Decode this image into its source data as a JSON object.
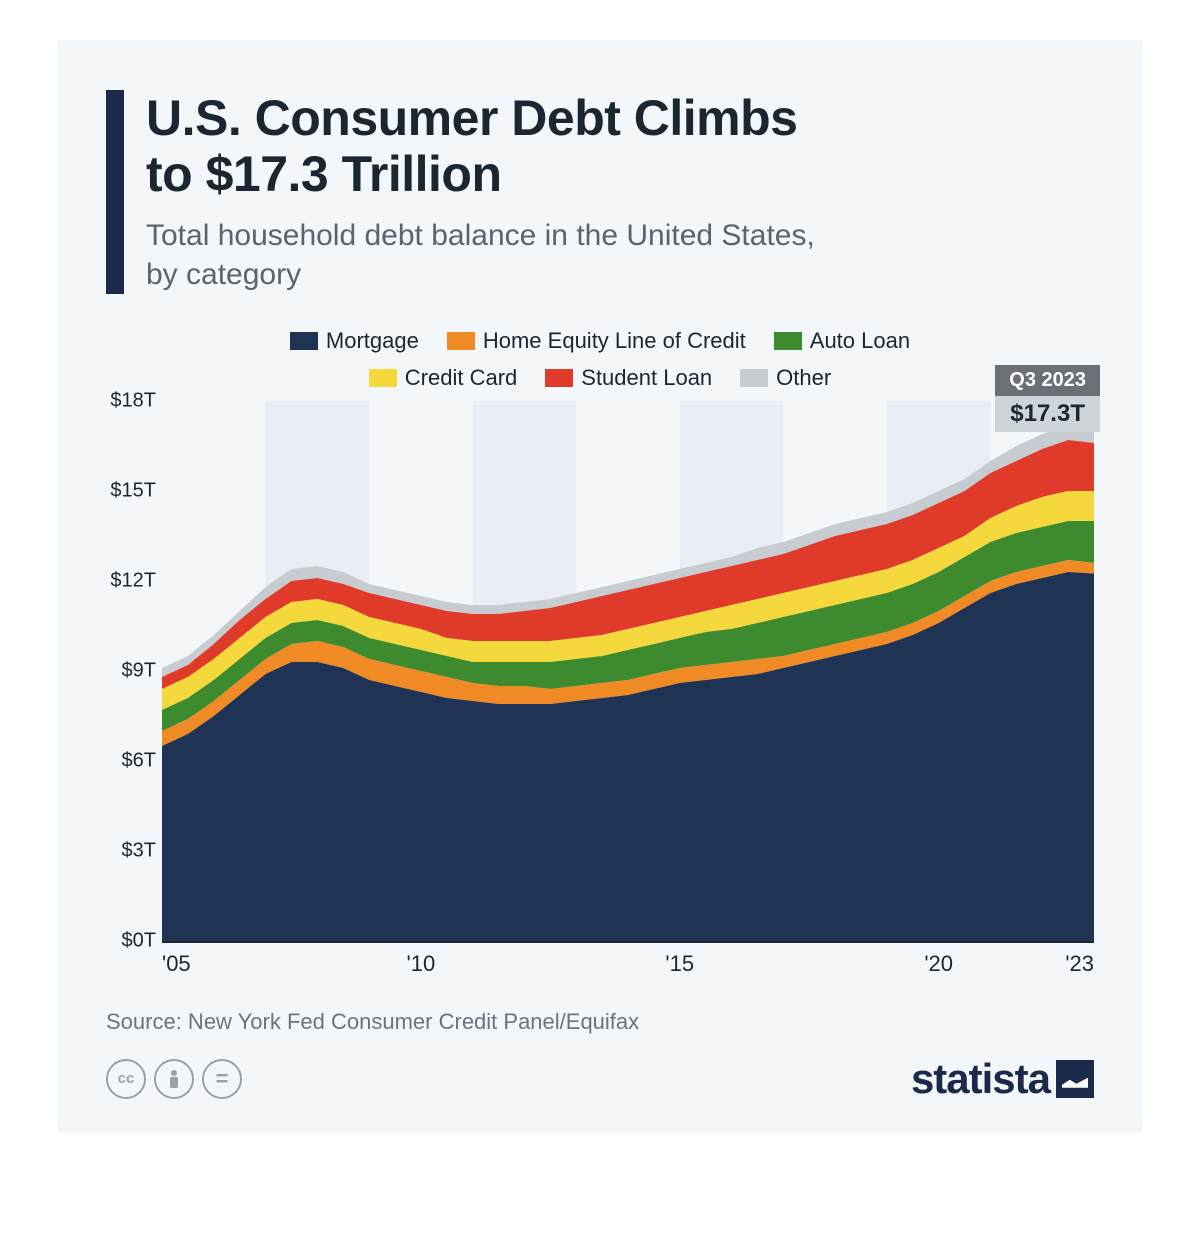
{
  "header": {
    "title_line1": "U.S. Consumer Debt Climbs",
    "title_line2": "to $17.3 Trillion",
    "subtitle_line1": "Total household debt balance in the United States,",
    "subtitle_line2": "by category"
  },
  "chart": {
    "type": "stacked-area",
    "background_color": "#f4f7fa",
    "plot_stripe_a": "#f4f7fa",
    "plot_stripe_b": "#e9eef4",
    "ylim": [
      0,
      18
    ],
    "ytick_step": 3,
    "ytick_labels": [
      "$0T",
      "$3T",
      "$6T",
      "$9T",
      "$12T",
      "$15T",
      "$18T"
    ],
    "x_start_year": 2005,
    "x_end_year": 2023,
    "x_tick_years": [
      2005,
      2010,
      2015,
      2020,
      2023
    ],
    "x_tick_labels": [
      "'05",
      "'10",
      "'15",
      "'20",
      "'23"
    ],
    "series": [
      {
        "name": "Mortgage",
        "color": "#1f3354"
      },
      {
        "name": "Home Equity Line of Credit",
        "color": "#f08a24"
      },
      {
        "name": "Auto Loan",
        "color": "#3e8a2e"
      },
      {
        "name": "Credit Card",
        "color": "#f5d93c"
      },
      {
        "name": "Student Loan",
        "color": "#e03a2a"
      },
      {
        "name": "Other",
        "color": "#c7ccd1"
      }
    ],
    "years_step_quarters": 4,
    "cumulative_layers": [
      [
        6.5,
        6.9,
        7.5,
        8.2,
        8.9,
        9.3,
        9.3,
        9.1,
        8.7,
        8.5,
        8.3,
        8.1,
        8.0,
        7.9,
        7.9,
        7.9,
        8.0,
        8.1,
        8.2,
        8.4,
        8.6,
        8.7,
        8.8,
        8.9,
        9.1,
        9.3,
        9.5,
        9.7,
        9.9,
        10.2,
        10.6,
        11.1,
        11.6,
        11.9,
        12.1,
        12.3,
        12.25
      ],
      [
        7.0,
        7.4,
        8.0,
        8.7,
        9.4,
        9.9,
        10.0,
        9.8,
        9.4,
        9.2,
        9.0,
        8.8,
        8.6,
        8.5,
        8.5,
        8.4,
        8.5,
        8.6,
        8.7,
        8.9,
        9.1,
        9.2,
        9.3,
        9.4,
        9.5,
        9.7,
        9.9,
        10.1,
        10.3,
        10.6,
        11.0,
        11.5,
        12.0,
        12.3,
        12.5,
        12.7,
        12.6
      ],
      [
        7.7,
        8.1,
        8.7,
        9.4,
        10.1,
        10.6,
        10.7,
        10.5,
        10.1,
        9.9,
        9.7,
        9.5,
        9.3,
        9.3,
        9.3,
        9.3,
        9.4,
        9.5,
        9.7,
        9.9,
        10.1,
        10.3,
        10.4,
        10.6,
        10.8,
        11.0,
        11.2,
        11.4,
        11.6,
        11.9,
        12.3,
        12.8,
        13.3,
        13.6,
        13.8,
        14.0,
        14.0
      ],
      [
        8.4,
        8.8,
        9.4,
        10.1,
        10.8,
        11.3,
        11.4,
        11.2,
        10.8,
        10.6,
        10.4,
        10.1,
        10.0,
        10.0,
        10.0,
        10.0,
        10.1,
        10.2,
        10.4,
        10.6,
        10.8,
        11.0,
        11.2,
        11.4,
        11.6,
        11.8,
        12.0,
        12.2,
        12.4,
        12.7,
        13.1,
        13.5,
        14.1,
        14.5,
        14.8,
        15.0,
        15.0
      ],
      [
        8.8,
        9.2,
        9.9,
        10.7,
        11.4,
        12.0,
        12.1,
        11.9,
        11.6,
        11.4,
        11.2,
        11.0,
        10.9,
        10.9,
        11.0,
        11.1,
        11.3,
        11.5,
        11.7,
        11.9,
        12.1,
        12.3,
        12.5,
        12.7,
        12.9,
        13.2,
        13.5,
        13.7,
        13.9,
        14.2,
        14.6,
        15.0,
        15.6,
        16.0,
        16.4,
        16.7,
        16.6
      ],
      [
        9.1,
        9.5,
        10.2,
        11.0,
        11.8,
        12.4,
        12.5,
        12.3,
        11.9,
        11.7,
        11.5,
        11.3,
        11.2,
        11.2,
        11.3,
        11.4,
        11.6,
        11.8,
        12.0,
        12.2,
        12.4,
        12.6,
        12.8,
        13.1,
        13.3,
        13.6,
        13.9,
        14.1,
        14.3,
        14.6,
        15.0,
        15.4,
        16.0,
        16.5,
        16.9,
        17.2,
        17.3
      ]
    ],
    "callout": {
      "label_top": "Q3 2023",
      "label_bottom": "$17.3T"
    }
  },
  "source": "Source: New York Fed Consumer Credit Panel/Equifax",
  "brand": "statista",
  "cc_badges": [
    "cc",
    "BY",
    "="
  ]
}
